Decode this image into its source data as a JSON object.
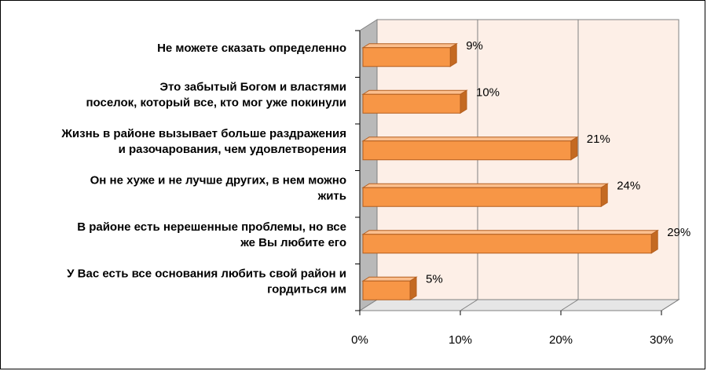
{
  "chart_data": {
    "type": "bar",
    "orientation": "horizontal",
    "style": "3d",
    "categories": [
      [
        "Не можете сказать определенно"
      ],
      [
        "Это забытый Богом и властями",
        "поселок, который все, кто мог уже покинули"
      ],
      [
        "Жизнь в районе вызывает больше раздражения",
        "и разочарования, чем удовлетворения"
      ],
      [
        "Он не хуже и не лучше других, в нем можно",
        "жить"
      ],
      [
        "В районе есть нерешенные проблемы, но все",
        "же Вы любите его"
      ],
      [
        "У Вас есть все основания любить свой район и",
        "гордиться им"
      ]
    ],
    "values": [
      9,
      10,
      21,
      24,
      29,
      5
    ],
    "data_labels": [
      "9%",
      "10%",
      "21%",
      "24%",
      "29%",
      "5%"
    ],
    "x_ticks": [
      "0%",
      "10%",
      "20%",
      "30%"
    ],
    "xlim": [
      0,
      30
    ],
    "grid": true,
    "legend": "none",
    "colors": {
      "bar_front": "#F79646",
      "bar_top": "#FBBF8E",
      "bar_side": "#C46A22",
      "bar_outline": "#B45F1F",
      "wall": "#FDEFE7",
      "gridline": "#808080"
    }
  }
}
